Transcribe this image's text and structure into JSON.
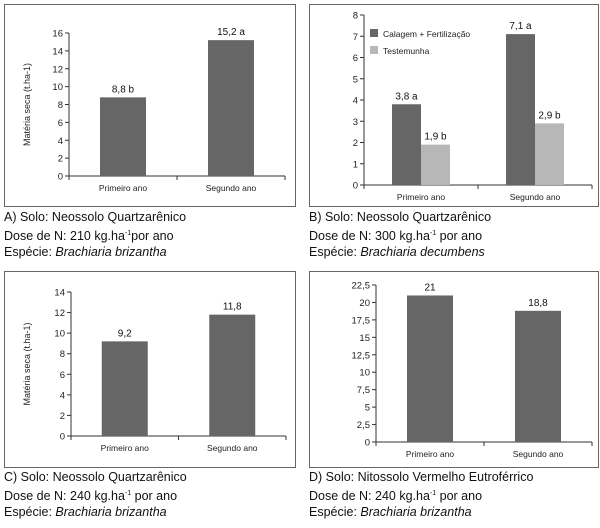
{
  "colors": {
    "dark_bar": "#666666",
    "light_bar": "#b7b7b7",
    "axis": "#333333"
  },
  "chart_data": [
    {
      "id": "A",
      "type": "bar",
      "categories": [
        "Primeiro ano",
        "Segundo ano"
      ],
      "series": [
        {
          "values": [
            8.8,
            15.2
          ],
          "labels": [
            "8,8 b",
            "15,2 a"
          ]
        }
      ],
      "ylabel": "Matéria seca (t.ha-1)",
      "ylim": [
        0,
        16
      ],
      "yticks": [
        0,
        2,
        4,
        6,
        8,
        10,
        12,
        14,
        16
      ],
      "ytick_labels": [
        "0",
        "2",
        "4",
        "6",
        "8",
        "10",
        "12",
        "14",
        "16"
      ],
      "grid": false,
      "legend": null
    },
    {
      "id": "B",
      "type": "bar",
      "categories": [
        "Primeiro ano",
        "Segundo ano"
      ],
      "series": [
        {
          "name": "Calagem + Fertilização",
          "values": [
            3.8,
            7.1
          ],
          "labels": [
            "3,8 a",
            "7,1 a"
          ]
        },
        {
          "name": "Testemunha",
          "values": [
            1.9,
            2.9
          ],
          "labels": [
            "1,9 b",
            "2,9 b"
          ]
        }
      ],
      "ylabel": "",
      "ylim": [
        0,
        8
      ],
      "yticks": [
        0,
        1,
        2,
        3,
        4,
        5,
        6,
        7,
        8
      ],
      "ytick_labels": [
        "0",
        "1",
        "2",
        "3",
        "4",
        "5",
        "6",
        "7",
        "8"
      ],
      "grid": false,
      "legend": "top-left"
    },
    {
      "id": "C",
      "type": "bar",
      "categories": [
        "Primeiro ano",
        "Segundo ano"
      ],
      "series": [
        {
          "values": [
            9.2,
            11.8
          ],
          "labels": [
            "9,2",
            "11,8"
          ]
        }
      ],
      "ylabel": "Matéria seca (t.ha-1)",
      "ylim": [
        0,
        14
      ],
      "yticks": [
        0,
        2,
        4,
        6,
        8,
        10,
        12,
        14
      ],
      "ytick_labels": [
        "0",
        "2",
        "4",
        "6",
        "8",
        "10",
        "12",
        "14"
      ],
      "grid": false,
      "legend": null
    },
    {
      "id": "D",
      "type": "bar",
      "categories": [
        "Primeiro ano",
        "Segundo ano"
      ],
      "series": [
        {
          "values": [
            21,
            18.8
          ],
          "labels": [
            "21",
            "18,8"
          ]
        }
      ],
      "ylabel": "",
      "ylim": [
        0,
        22.5
      ],
      "yticks": [
        0,
        2.5,
        5,
        7.5,
        10,
        12.5,
        15,
        17.5,
        20,
        22.5
      ],
      "ytick_labels": [
        "0",
        "2,5",
        "5",
        "7,5",
        "10",
        "12,5",
        "15",
        "17,5",
        "20",
        "22,5"
      ],
      "grid": false,
      "legend": null
    }
  ],
  "captions": [
    {
      "solo": "A) Solo: Neossolo Quartzarênico",
      "dose_pre": "Dose de N: 210 kg.ha",
      "sup": "-1",
      "dose_post": "por ano",
      "especie_pre": "Espécie: ",
      "especie": "Brachiaria brizantha"
    },
    {
      "solo": "B) Solo: Neossolo Quartzarênico",
      "dose_pre": "Dose de N: 300 kg.ha",
      "sup": "-1",
      "dose_post": " por ano",
      "especie_pre": "Espécie: ",
      "especie": "Brachiaria decumbens"
    },
    {
      "solo": "C) Solo: Neossolo Quartzarênico",
      "dose_pre": "Dose de N: 240 kg.ha",
      "sup": "-1",
      "dose_post": " por ano",
      "especie_pre": "Espécie: ",
      "especie": "Brachiaria brizantha"
    },
    {
      "solo": "D) Solo: Nitossolo Vermelho Eutroférrico",
      "dose_pre": "Dose de N: 240 kg.ha",
      "sup": "-1",
      "dose_post": " por ano",
      "especie_pre": "Espécie: ",
      "especie": "Brachiaria brizantha"
    }
  ]
}
